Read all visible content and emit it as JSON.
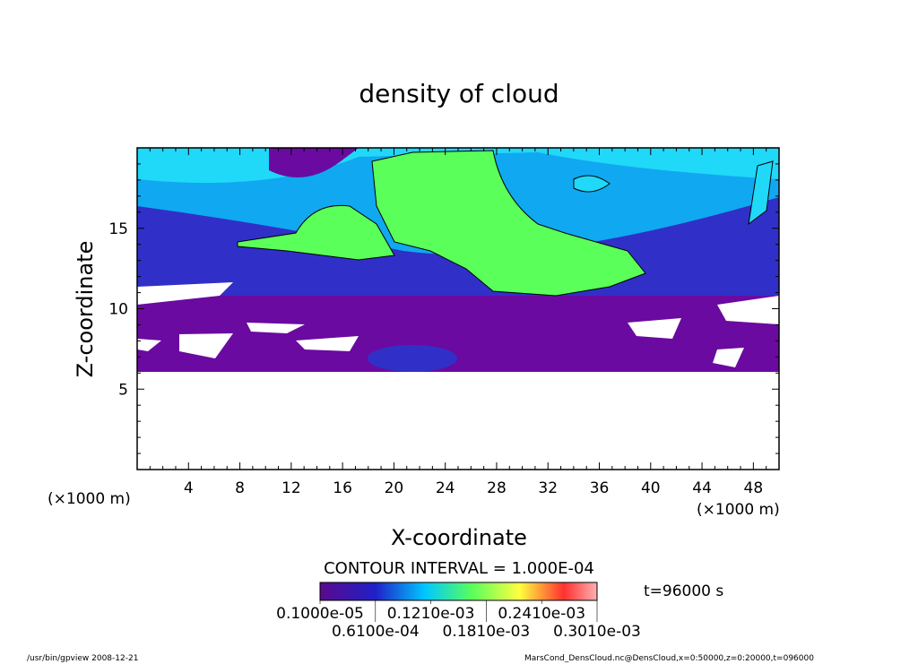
{
  "chart_data": {
    "type": "heatmap",
    "title": "density of cloud",
    "xlabel": "X-coordinate",
    "ylabel": "Z-coordinate",
    "x_unit": "(×1000 m)",
    "y_unit": "(×1000 m)",
    "xlim": [
      0,
      50
    ],
    "ylim": [
      0,
      20
    ],
    "xticks": [
      4,
      8,
      12,
      16,
      20,
      24,
      28,
      32,
      36,
      40,
      44,
      48
    ],
    "yticks": [
      5,
      10,
      15
    ],
    "contour_interval": "CONTOUR INTERVAL = 1.000E-04",
    "colorbar_labels": [
      "0.1000e-05",
      "0.6100e-04",
      "0.1210e-03",
      "0.1810e-03",
      "0.2410e-03",
      "0.3010e-03"
    ],
    "time_label": "t=96000 s",
    "colors": [
      "#5a0a8c",
      "#2020c8",
      "#00c8ff",
      "#5aff5a",
      "#ffff40",
      "#ff3030",
      "#ffb0b0"
    ]
  },
  "footer": {
    "left": "/usr/bin/gpview   2008-12-21",
    "right": "MarsCond_DensCloud.nc@DensCloud,x=0:50000,z=0:20000,t=096000"
  }
}
